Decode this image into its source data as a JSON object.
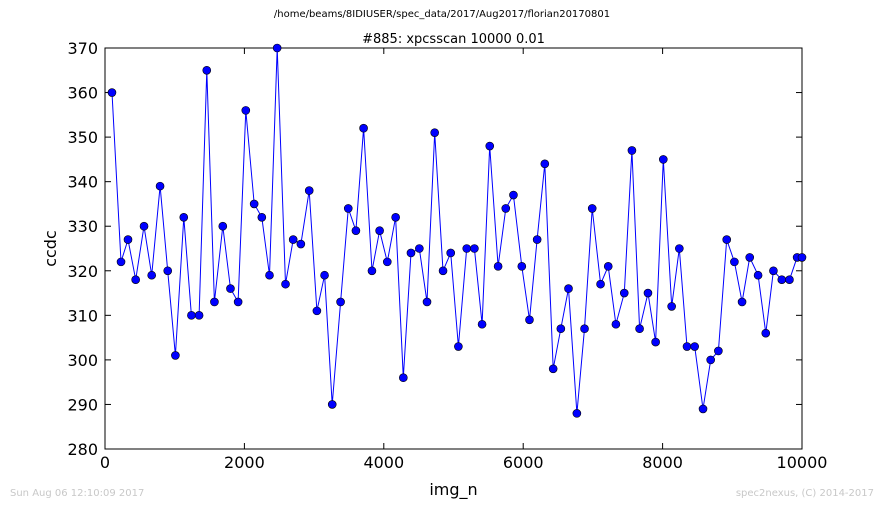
{
  "header": {
    "path": "/home/beams/8IDIUSER/spec_data/2017/Aug2017/florian20170801"
  },
  "footer": {
    "timestamp": "Sun Aug 06 12:10:09 2017",
    "credit": "spec2nexus, (C) 2014-2017"
  },
  "colors": {
    "series": "#0000ff",
    "marker": "#0000cc"
  },
  "chart_data": {
    "type": "line",
    "title": "#885: xpcsscan 10000 0.01",
    "xlabel": "img_n",
    "ylabel": "ccdc",
    "xlim": [
      0,
      10000
    ],
    "ylim": [
      280,
      370
    ],
    "xticks": [
      0,
      2000,
      4000,
      6000,
      8000,
      10000
    ],
    "yticks": [
      280,
      290,
      300,
      310,
      320,
      330,
      340,
      350,
      360,
      370
    ],
    "grid": false,
    "legend": "none",
    "markers": true,
    "series": [
      {
        "x": [
          100,
          230,
          330,
          440,
          560,
          670,
          790,
          900,
          1010,
          1130,
          1240,
          1350,
          1460,
          1570,
          1690,
          1800,
          1910,
          2020,
          2140,
          2250,
          2360,
          2470,
          2590,
          2700,
          2810,
          2930,
          3040,
          3150,
          3260,
          3380,
          3490,
          3600,
          3710,
          3830,
          3940,
          4050,
          4170,
          4280,
          4390,
          4510,
          4620,
          4730,
          4850,
          4960,
          5070,
          5190,
          5300,
          5410,
          5520,
          5640,
          5750,
          5860,
          5980,
          6090,
          6200,
          6310,
          6430,
          6540,
          6650,
          6770,
          6880,
          6990,
          7110,
          7220,
          7330,
          7450,
          7560,
          7670,
          7790,
          7900,
          8010,
          8130,
          8240,
          8350,
          8460,
          8580,
          8690,
          8800,
          8920,
          9030,
          9140,
          9250,
          9370,
          9480,
          9590,
          9710,
          9820,
          9930,
          10000
        ],
        "y": [
          360,
          322,
          327,
          318,
          330,
          319,
          339,
          320,
          301,
          332,
          310,
          310,
          365,
          313,
          330,
          316,
          313,
          356,
          335,
          332,
          319,
          370,
          317,
          327,
          326,
          338,
          311,
          319,
          290,
          313,
          334,
          329,
          352,
          320,
          329,
          322,
          332,
          296,
          324,
          325,
          313,
          351,
          320,
          324,
          303,
          325,
          325,
          308,
          348,
          321,
          334,
          337,
          321,
          309,
          327,
          344,
          298,
          307,
          316,
          288,
          307,
          334,
          317,
          321,
          308,
          315,
          347,
          307,
          315,
          304,
          345,
          312,
          325,
          303,
          303,
          289,
          300,
          302,
          327,
          322,
          313,
          323,
          319,
          306,
          320,
          318,
          318,
          323,
          323
        ]
      }
    ]
  }
}
